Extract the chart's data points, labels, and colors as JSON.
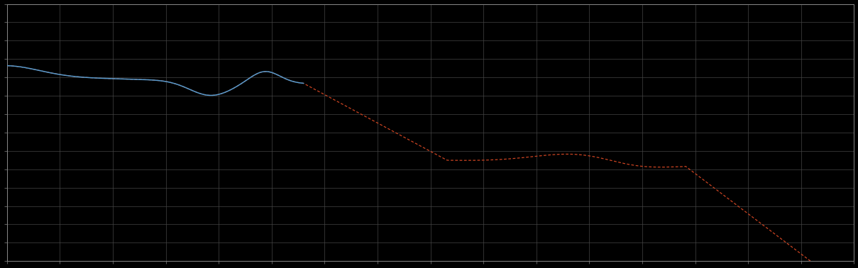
{
  "background_color": "#000000",
  "plot_bg_color": "#000000",
  "grid_color": "#444444",
  "blue_line_color": "#5599cc",
  "red_line_color": "#cc4422",
  "figsize": [
    12.09,
    3.78
  ],
  "dpi": 100,
  "spine_color": "#888888",
  "tick_color": "#888888"
}
